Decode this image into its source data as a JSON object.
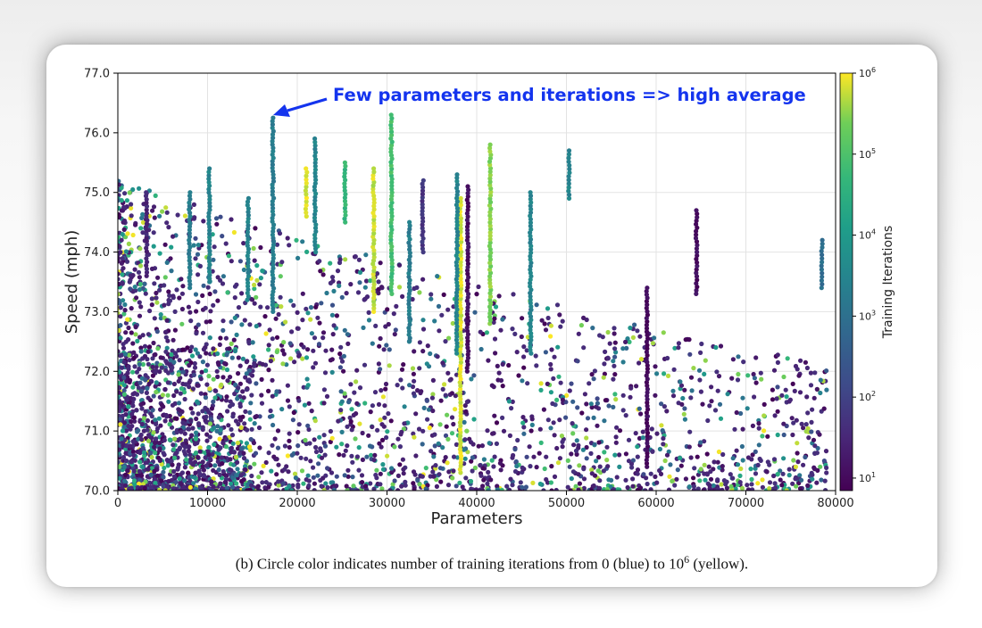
{
  "caption": {
    "prefix": "(b) Circle color indicates number of training iterations from 0 (blue) to 10",
    "exponent": "6",
    "suffix": " (yellow)."
  },
  "chart_data": {
    "type": "scatter",
    "title": "",
    "xlabel": "Parameters",
    "ylabel": "Speed (mph)",
    "xlim": [
      0,
      80000
    ],
    "ylim": [
      70.0,
      77.0
    ],
    "xticks": [
      "0",
      "10000",
      "20000",
      "30000",
      "40000",
      "50000",
      "60000",
      "70000",
      "80000"
    ],
    "yticks": [
      "70.0",
      "71.0",
      "72.0",
      "73.0",
      "74.0",
      "75.0",
      "76.0",
      "77.0"
    ],
    "grid": true,
    "colorbar": {
      "label": "Training Iterations",
      "scale": "log",
      "range": [
        7,
        1000000
      ],
      "colormap": "viridis",
      "tick_base": "10",
      "tick_exponents": [
        "1",
        "2",
        "3",
        "4",
        "5",
        "6"
      ]
    },
    "annotation": {
      "text": "Few parameters and iterations => high average",
      "color": "#1434ee",
      "points_to": {
        "x": 17300,
        "y": 76.3
      }
    },
    "column_series": [
      {
        "x": 17300,
        "ymin": 73.0,
        "ymax": 76.25,
        "iterations": 2000
      },
      {
        "x": 30500,
        "ymin": 73.3,
        "ymax": 76.3,
        "iterations": 80000
      },
      {
        "x": 22000,
        "ymin": 74.0,
        "ymax": 75.9,
        "iterations": 3000
      },
      {
        "x": 21000,
        "ymin": 74.6,
        "ymax": 75.4,
        "iterations": 700000
      },
      {
        "x": 41500,
        "ymin": 72.8,
        "ymax": 75.8,
        "iterations": 300000
      },
      {
        "x": 50300,
        "ymin": 74.9,
        "ymax": 75.7,
        "iterations": 3000
      },
      {
        "x": 28500,
        "ymin": 73.0,
        "ymax": 75.4,
        "iterations": 600000
      },
      {
        "x": 25300,
        "ymin": 74.5,
        "ymax": 75.5,
        "iterations": 50000
      },
      {
        "x": 39000,
        "ymin": 72.0,
        "ymax": 75.1,
        "iterations": 12
      },
      {
        "x": 32500,
        "ymin": 72.5,
        "ymax": 74.5,
        "iterations": 2000
      },
      {
        "x": 46000,
        "ymin": 72.3,
        "ymax": 75.0,
        "iterations": 3000
      },
      {
        "x": 38200,
        "ymin": 70.3,
        "ymax": 74.9,
        "iterations": 700000
      },
      {
        "x": 37800,
        "ymin": 72.3,
        "ymax": 75.3,
        "iterations": 3000
      },
      {
        "x": 59000,
        "ymin": 70.4,
        "ymax": 73.4,
        "iterations": 10
      },
      {
        "x": 64500,
        "ymin": 73.3,
        "ymax": 74.7,
        "iterations": 12
      },
      {
        "x": 78500,
        "ymin": 73.4,
        "ymax": 74.2,
        "iterations": 800
      },
      {
        "x": 8000,
        "ymin": 73.4,
        "ymax": 75.0,
        "iterations": 2000
      },
      {
        "x": 10200,
        "ymin": 73.5,
        "ymax": 75.4,
        "iterations": 3000
      },
      {
        "x": 3200,
        "ymin": 73.6,
        "ymax": 75.0,
        "iterations": 30
      },
      {
        "x": 34000,
        "ymin": 74.0,
        "ymax": 75.2,
        "iterations": 60
      },
      {
        "x": 14500,
        "ymin": 73.2,
        "ymax": 74.9,
        "iterations": 3000
      }
    ],
    "scatter_note": "dense cloud of several thousand points, densest near the origin (0–15000 parameters, 70–72 mph), thinning toward higher parameter counts"
  }
}
